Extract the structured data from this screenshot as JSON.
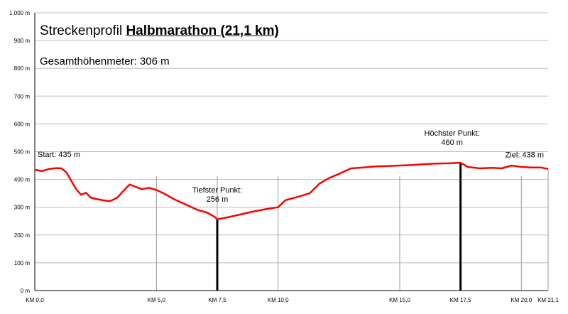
{
  "title": {
    "prefix": "Streckenprofil",
    "bold": "Halbmarathon (21,1 km)"
  },
  "subtitle": "Gesamthöhenmeter: 306 m",
  "chart_data": {
    "type": "line",
    "xlim": [
      0,
      21.1
    ],
    "ylim": [
      0,
      1000
    ],
    "grid": true,
    "line_color": "#ff0000",
    "y_ticks": [
      {
        "value": 0,
        "label": "0 m"
      },
      {
        "value": 100,
        "label": "100 m"
      },
      {
        "value": 200,
        "label": "200 m"
      },
      {
        "value": 300,
        "label": "300 m"
      },
      {
        "value": 400,
        "label": "400 m"
      },
      {
        "value": 500,
        "label": "500 m"
      },
      {
        "value": 600,
        "label": "600 m"
      },
      {
        "value": 700,
        "label": "700 m"
      },
      {
        "value": 800,
        "label": "800 m"
      },
      {
        "value": 900,
        "label": "900 m"
      },
      {
        "value": 1000,
        "label": "1.000 m"
      }
    ],
    "x_ticks": [
      {
        "value": 0,
        "label": "KM 0,0"
      },
      {
        "value": 5,
        "label": "KM 5,0"
      },
      {
        "value": 7.5,
        "label": "KM 7,5"
      },
      {
        "value": 10,
        "label": "KM 10,0"
      },
      {
        "value": 15,
        "label": "KM 15,0"
      },
      {
        "value": 17.5,
        "label": "KM 17,5"
      },
      {
        "value": 20,
        "label": "KM 20,0"
      },
      {
        "value": 21.1,
        "label": "KM 21,1"
      }
    ],
    "x": [
      0,
      0.3,
      0.6,
      0.9,
      1.1,
      1.3,
      1.5,
      1.7,
      1.9,
      2.1,
      2.3,
      2.5,
      2.8,
      3.1,
      3.4,
      3.6,
      3.9,
      4.1,
      4.4,
      4.7,
      5.0,
      5.3,
      5.7,
      6.2,
      6.7,
      7.1,
      7.4,
      7.5,
      7.6,
      8.0,
      8.5,
      9.0,
      9.5,
      10.0,
      10.3,
      10.8,
      11.3,
      11.7,
      12.1,
      12.5,
      13.0,
      13.5,
      14.0,
      14.5,
      15.0,
      15.5,
      16.0,
      16.5,
      17.0,
      17.5,
      17.8,
      18.3,
      18.8,
      19.2,
      19.6,
      20.0,
      20.4,
      20.8,
      21.1
    ],
    "y": [
      435,
      430,
      438,
      441,
      440,
      425,
      395,
      365,
      345,
      352,
      335,
      330,
      325,
      322,
      335,
      355,
      382,
      375,
      365,
      370,
      362,
      350,
      330,
      310,
      290,
      280,
      265,
      256,
      258,
      265,
      275,
      285,
      293,
      300,
      325,
      337,
      350,
      385,
      405,
      420,
      440,
      443,
      447,
      448,
      450,
      452,
      455,
      457,
      458,
      460,
      445,
      440,
      442,
      440,
      450,
      445,
      443,
      443,
      438
    ],
    "reference_lines": [
      {
        "x": 7.5,
        "y": 256
      },
      {
        "x": 17.5,
        "y": 460
      }
    ],
    "annotations": [
      {
        "lines": [
          "Start: 435 m"
        ],
        "x": 0,
        "y": 435
      },
      {
        "lines": [
          "Tiefster Punkt:",
          "256 m"
        ],
        "x": 7.5,
        "y": 256
      },
      {
        "lines": [
          "Höchster Punkt:",
          "460 m"
        ],
        "x": 17.5,
        "y": 460
      },
      {
        "lines": [
          "Ziel: 438 m"
        ],
        "x": 21.1,
        "y": 438
      }
    ]
  }
}
